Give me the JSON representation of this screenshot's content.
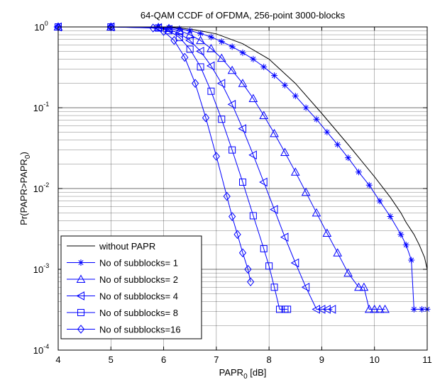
{
  "chart_data": {
    "type": "line",
    "title": "64-QAM CCDF of OFDMA, 256-point 3000-blocks",
    "xlabel": "PAPR",
    "xlabel_sub": "0",
    "xlabel_unit": " [dB]",
    "ylabel": "Pr(PAPR>PAPR",
    "ylabel_sub": "0",
    "ylabel_close": ")",
    "xlim": [
      4,
      11
    ],
    "ylim": [
      0.0001,
      1
    ],
    "yscale": "log",
    "grid": true,
    "legend_position": "bottom-left",
    "x_ticks": [
      "4",
      "5",
      "6",
      "7",
      "8",
      "9",
      "10",
      "11"
    ],
    "y_ticks": [
      {
        "base": "10",
        "exp": "-4"
      },
      {
        "base": "10",
        "exp": "-3"
      },
      {
        "base": "10",
        "exp": "-2"
      },
      {
        "base": "10",
        "exp": "-1"
      },
      {
        "base": "10",
        "exp": "0"
      }
    ],
    "line_color": "#0000ff",
    "baseline_color": "#000000",
    "series": [
      {
        "name": "without PAPR",
        "marker": "none",
        "x": [
          4.0,
          6.0,
          6.3,
          6.6,
          7.0,
          7.5,
          8.0,
          8.5,
          9.0,
          9.5,
          10.0,
          10.3,
          10.5,
          10.6,
          10.75,
          10.85,
          10.95,
          11.0
        ],
        "y": [
          1.0,
          1.0,
          0.97,
          0.92,
          0.82,
          0.62,
          0.4,
          0.2,
          0.085,
          0.035,
          0.014,
          0.0078,
          0.005,
          0.0038,
          0.0027,
          0.002,
          0.0014,
          0.001
        ]
      },
      {
        "name": "No of subblocks= 1",
        "marker": "star",
        "x": [
          4.0,
          5.0,
          5.9,
          6.1,
          6.3,
          6.5,
          6.7,
          6.9,
          7.1,
          7.3,
          7.5,
          7.7,
          7.9,
          8.1,
          8.3,
          8.5,
          8.7,
          8.9,
          9.1,
          9.3,
          9.5,
          9.7,
          9.9,
          10.1,
          10.3,
          10.5,
          10.6,
          10.7,
          10.75,
          10.9,
          11.0
        ],
        "y": [
          1.0,
          1.0,
          1.0,
          0.98,
          0.95,
          0.9,
          0.83,
          0.75,
          0.66,
          0.57,
          0.48,
          0.4,
          0.32,
          0.25,
          0.19,
          0.14,
          0.1,
          0.072,
          0.05,
          0.035,
          0.024,
          0.016,
          0.011,
          0.007,
          0.0045,
          0.0027,
          0.002,
          0.0013,
          0.00032,
          0.00032,
          0.00032
        ]
      },
      {
        "name": "No of subblocks= 2",
        "marker": "triangle-up",
        "x": [
          4.0,
          5.0,
          5.9,
          6.1,
          6.3,
          6.5,
          6.7,
          6.9,
          7.1,
          7.3,
          7.5,
          7.7,
          7.9,
          8.1,
          8.3,
          8.5,
          8.7,
          8.9,
          9.1,
          9.3,
          9.5,
          9.7,
          9.8,
          9.9,
          10.0,
          10.1,
          10.2
        ],
        "y": [
          1.0,
          1.0,
          0.99,
          0.96,
          0.9,
          0.8,
          0.68,
          0.54,
          0.41,
          0.29,
          0.2,
          0.13,
          0.08,
          0.048,
          0.028,
          0.016,
          0.009,
          0.005,
          0.0028,
          0.0016,
          0.0009,
          0.0006,
          0.0006,
          0.00032,
          0.00032,
          0.00032,
          0.00032
        ]
      },
      {
        "name": "No of subblocks= 4",
        "marker": "triangle-left",
        "x": [
          4.0,
          5.0,
          5.9,
          6.1,
          6.3,
          6.5,
          6.7,
          6.9,
          7.1,
          7.3,
          7.5,
          7.7,
          7.9,
          8.1,
          8.3,
          8.5,
          8.7,
          8.9,
          9.0,
          9.1,
          9.2
        ],
        "y": [
          1.0,
          1.0,
          0.98,
          0.93,
          0.83,
          0.68,
          0.5,
          0.33,
          0.2,
          0.11,
          0.055,
          0.026,
          0.012,
          0.0055,
          0.0025,
          0.0012,
          0.0006,
          0.00032,
          0.00032,
          0.00032,
          0.00032
        ]
      },
      {
        "name": "No of subblocks= 8",
        "marker": "square",
        "x": [
          4.0,
          5.0,
          5.9,
          6.1,
          6.3,
          6.5,
          6.7,
          6.9,
          7.1,
          7.3,
          7.5,
          7.7,
          7.9,
          8.0,
          8.1,
          8.2,
          8.3,
          8.35
        ],
        "y": [
          1.0,
          1.0,
          0.97,
          0.9,
          0.74,
          0.53,
          0.32,
          0.16,
          0.072,
          0.03,
          0.012,
          0.0046,
          0.0018,
          0.0011,
          0.0006,
          0.00032,
          0.00032,
          0.00032
        ]
      },
      {
        "name": "No of subblocks=16",
        "marker": "diamond",
        "x": [
          4.0,
          5.0,
          5.8,
          6.0,
          6.2,
          6.4,
          6.6,
          6.8,
          7.0,
          7.2,
          7.3,
          7.4,
          7.5,
          7.6,
          7.65
        ],
        "y": [
          1.0,
          1.0,
          0.97,
          0.88,
          0.68,
          0.42,
          0.2,
          0.075,
          0.025,
          0.008,
          0.0045,
          0.0027,
          0.0016,
          0.001,
          0.0007
        ]
      }
    ]
  }
}
